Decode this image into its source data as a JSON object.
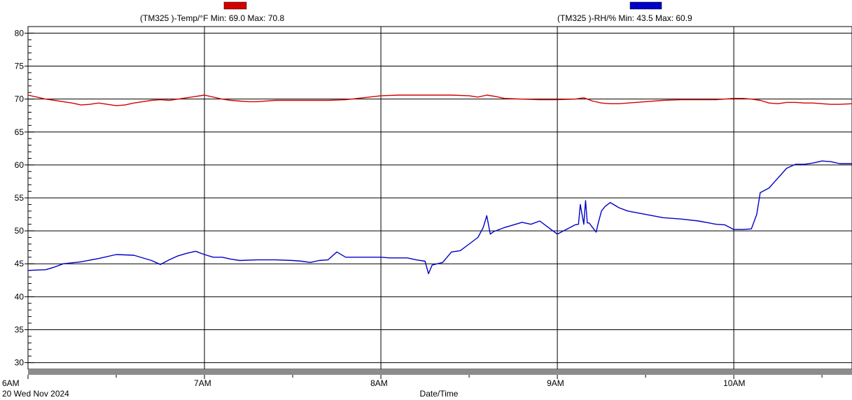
{
  "chart_data": {
    "type": "line",
    "xlabel": "Date/Time",
    "date_label": "20 Wed Nov 2024",
    "x_tick_labels": [
      "6AM",
      "7AM",
      "8AM",
      "9AM",
      "10AM"
    ],
    "y_tick_labels": [
      "30",
      "35",
      "40",
      "45",
      "50",
      "55",
      "60",
      "65",
      "70",
      "75",
      "80"
    ],
    "ylim": [
      29,
      81
    ],
    "xlim_hours": [
      6.0,
      10.67
    ],
    "grid": true,
    "legend_placement": "top",
    "series": [
      {
        "name": "(TM325    )-Temp/°F Min: 69.0 Max: 70.8",
        "color": "#d40000",
        "x": [
          6.0,
          6.05,
          6.1,
          6.15,
          6.2,
          6.25,
          6.3,
          6.35,
          6.4,
          6.45,
          6.5,
          6.55,
          6.6,
          6.65,
          6.7,
          6.75,
          6.8,
          6.85,
          6.9,
          6.95,
          7.0,
          7.05,
          7.1,
          7.15,
          7.2,
          7.25,
          7.3,
          7.4,
          7.5,
          7.6,
          7.7,
          7.8,
          7.9,
          8.0,
          8.1,
          8.2,
          8.3,
          8.4,
          8.5,
          8.55,
          8.6,
          8.65,
          8.7,
          8.8,
          8.9,
          9.0,
          9.1,
          9.15,
          9.2,
          9.25,
          9.3,
          9.35,
          9.4,
          9.5,
          9.6,
          9.7,
          9.8,
          9.9,
          10.0,
          10.05,
          10.1,
          10.15,
          10.2,
          10.25,
          10.3,
          10.35,
          10.4,
          10.45,
          10.5,
          10.55,
          10.6,
          10.67
        ],
        "values": [
          70.6,
          70.3,
          70.0,
          69.8,
          69.6,
          69.4,
          69.1,
          69.2,
          69.4,
          69.2,
          69.0,
          69.1,
          69.4,
          69.6,
          69.8,
          69.9,
          69.8,
          70.0,
          70.2,
          70.4,
          70.6,
          70.3,
          70.0,
          69.8,
          69.7,
          69.6,
          69.6,
          69.8,
          69.8,
          69.8,
          69.8,
          69.9,
          70.2,
          70.5,
          70.6,
          70.6,
          70.6,
          70.6,
          70.5,
          70.3,
          70.6,
          70.4,
          70.1,
          70.0,
          69.9,
          69.9,
          70.0,
          70.2,
          69.7,
          69.4,
          69.3,
          69.3,
          69.4,
          69.6,
          69.8,
          69.9,
          69.9,
          69.9,
          70.1,
          70.1,
          70.0,
          69.8,
          69.4,
          69.3,
          69.5,
          69.5,
          69.4,
          69.4,
          69.3,
          69.2,
          69.2,
          69.3
        ]
      },
      {
        "name": "(TM325    )-RH/% Min: 43.5 Max: 60.9",
        "color": "#0000c8",
        "x": [
          6.0,
          6.1,
          6.15,
          6.2,
          6.3,
          6.4,
          6.5,
          6.6,
          6.7,
          6.75,
          6.8,
          6.85,
          6.9,
          6.95,
          7.0,
          7.05,
          7.1,
          7.15,
          7.2,
          7.3,
          7.4,
          7.5,
          7.55,
          7.6,
          7.65,
          7.7,
          7.75,
          7.8,
          7.9,
          8.0,
          8.05,
          8.1,
          8.15,
          8.2,
          8.25,
          8.27,
          8.29,
          8.35,
          8.4,
          8.45,
          8.5,
          8.55,
          8.58,
          8.6,
          8.62,
          8.64,
          8.7,
          8.8,
          8.85,
          8.9,
          8.95,
          9.0,
          9.05,
          9.1,
          9.12,
          9.13,
          9.15,
          9.16,
          9.17,
          9.18,
          9.2,
          9.22,
          9.23,
          9.25,
          9.27,
          9.3,
          9.35,
          9.4,
          9.5,
          9.6,
          9.7,
          9.8,
          9.9,
          9.95,
          10.0,
          10.05,
          10.1,
          10.13,
          10.15,
          10.2,
          10.25,
          10.3,
          10.35,
          10.4,
          10.45,
          10.5,
          10.55,
          10.6,
          10.67
        ],
        "values": [
          44.0,
          44.1,
          44.5,
          45.0,
          45.3,
          45.8,
          46.4,
          46.3,
          45.5,
          44.9,
          45.6,
          46.2,
          46.6,
          46.9,
          46.4,
          46.0,
          46.0,
          45.7,
          45.5,
          45.6,
          45.6,
          45.5,
          45.4,
          45.2,
          45.5,
          45.6,
          46.8,
          46.0,
          46.0,
          46.0,
          45.9,
          45.9,
          45.9,
          45.6,
          45.4,
          43.5,
          44.8,
          45.2,
          46.8,
          47.0,
          48.0,
          49.0,
          50.5,
          52.3,
          49.5,
          49.9,
          50.5,
          51.3,
          51.0,
          51.5,
          50.5,
          49.5,
          50.2,
          50.9,
          51.0,
          54.0,
          51.0,
          54.6,
          51.2,
          51.2,
          50.5,
          49.8,
          51.0,
          53.0,
          53.7,
          54.3,
          53.5,
          53.0,
          52.5,
          52.0,
          51.8,
          51.5,
          51.0,
          50.9,
          50.2,
          50.2,
          50.3,
          52.5,
          55.8,
          56.5,
          58.0,
          59.5,
          60.1,
          60.1,
          60.3,
          60.6,
          60.5,
          60.2,
          60.2
        ]
      }
    ]
  }
}
